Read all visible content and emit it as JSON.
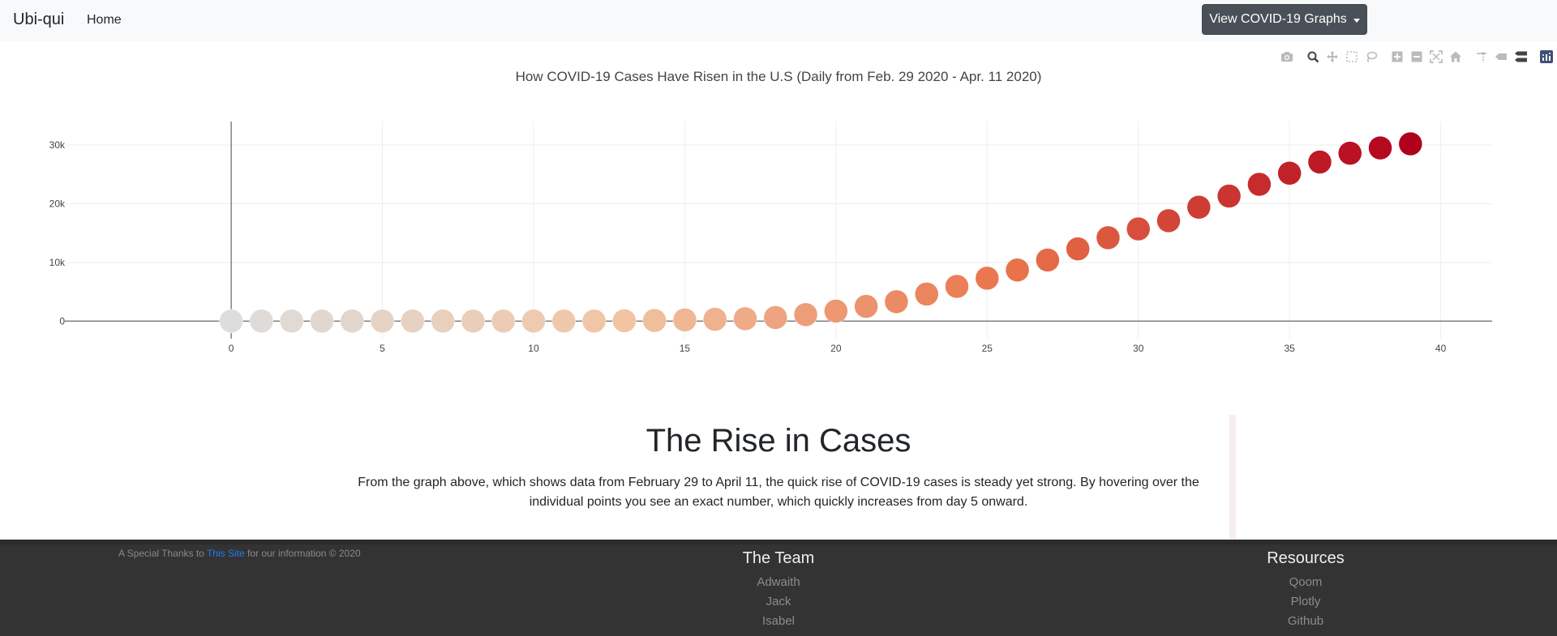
{
  "navbar": {
    "brand": "Ubi-qui",
    "home": "Home",
    "graphs_button": "View COVID-19 Graphs"
  },
  "modebar": {
    "icons": [
      "camera-icon",
      "zoom-icon",
      "pan-icon",
      "box-select-icon",
      "lasso-icon",
      "zoom-in-icon",
      "zoom-out-icon",
      "autoscale-icon",
      "reset-axes-icon",
      "spike-lines-icon",
      "hover-closest-icon",
      "hover-compare-icon",
      "plotly-logo-icon"
    ]
  },
  "chart_data": {
    "type": "scatter",
    "title": "How COVID-19 Cases Have Risen in the U.S (Daily from Feb. 29 2020 - Apr. 11 2020)",
    "xlabel": "",
    "ylabel": "",
    "x": [
      0,
      1,
      2,
      3,
      4,
      5,
      6,
      7,
      8,
      9,
      10,
      11,
      12,
      13,
      14,
      15,
      16,
      17,
      18,
      19,
      20,
      21,
      22,
      23,
      24,
      25,
      26,
      27,
      28,
      29,
      30,
      31,
      32,
      33,
      34,
      35,
      36,
      37,
      38,
      39
    ],
    "y": [
      0,
      0,
      0,
      0,
      0,
      0,
      0,
      0,
      0,
      0,
      0,
      0,
      0,
      50,
      100,
      200,
      300,
      400,
      600,
      1100,
      1700,
      2500,
      3300,
      4600,
      5900,
      7300,
      8700,
      10400,
      12300,
      14200,
      15700,
      17100,
      19400,
      21300,
      23300,
      25200,
      27100,
      28600,
      29500,
      30200
    ],
    "xlim": [
      -5.5,
      41.7
    ],
    "ylim": [
      -3000,
      34000
    ],
    "xticks": [
      0,
      5,
      10,
      15,
      20,
      25,
      30,
      35,
      40
    ],
    "xtick_labels": [
      "0",
      "5",
      "10",
      "15",
      "20",
      "25",
      "30",
      "35",
      "40"
    ],
    "yticks": [
      0,
      10000,
      20000,
      30000
    ],
    "ytick_labels": [
      "0",
      "10k",
      "20k",
      "30k"
    ],
    "grid": true,
    "colorscale": [
      "#dddddd",
      "#f2c4a2",
      "#e8724a",
      "#b0001b"
    ]
  },
  "article": {
    "title": "The Rise in Cases",
    "text": "From the graph above, which shows data from February 29 to April 11, the quick rise of COVID-19 cases is steady yet strong. By hovering over the individual points you see an exact number, which quickly increases from day 5 onward."
  },
  "footer": {
    "thanks_prefix": "A Special Thanks to ",
    "thanks_link": "This Site",
    "thanks_suffix": " for our information © 2020",
    "team_heading": "The Team",
    "team": [
      "Adwaith",
      "Jack",
      "Isabel"
    ],
    "resources_heading": "Resources",
    "resources": [
      "Qoom",
      "Plotly",
      "Github"
    ]
  }
}
